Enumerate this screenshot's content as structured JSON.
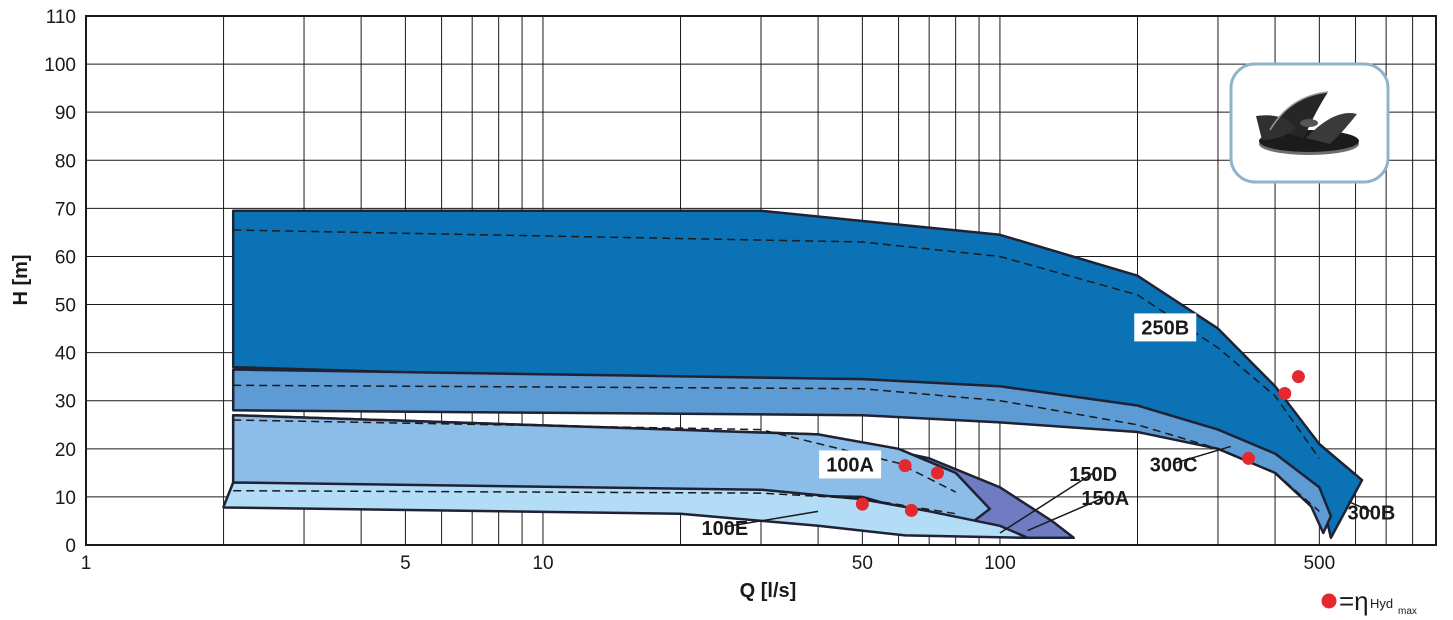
{
  "chart_data": {
    "type": "area",
    "xlabel": "Q [l/s]",
    "ylabel": "H [m]",
    "x_scale": "log",
    "xlim": [
      1,
      900
    ],
    "ylim": [
      0,
      110
    ],
    "x_ticks": [
      {
        "value": 1,
        "label": "1"
      },
      {
        "value": 5,
        "label": "5"
      },
      {
        "value": 10,
        "label": "10"
      },
      {
        "value": 50,
        "label": "50"
      },
      {
        "value": 100,
        "label": "100"
      },
      {
        "value": 500,
        "label": "500"
      }
    ],
    "y_ticks": [
      0,
      10,
      20,
      30,
      40,
      50,
      60,
      70,
      80,
      90,
      100,
      110
    ],
    "grid": true,
    "colors": {
      "300B": "#0a72b5",
      "300C": "#5d9bd5",
      "150D": "#6f7cc2",
      "150A": "#8cbde8",
      "100E": "#b3dcf7",
      "outline": "#1e2232",
      "bep_marker": "#e3282e"
    },
    "series": [
      {
        "name": "300B",
        "label": "250B",
        "polygon": [
          [
            2.1,
            69.5
          ],
          [
            30,
            69.5
          ],
          [
            100,
            64.5
          ],
          [
            200,
            56
          ],
          [
            300,
            45
          ],
          [
            400,
            33
          ],
          [
            500,
            21
          ],
          [
            620,
            13.5
          ],
          [
            530,
            1.5
          ],
          [
            500,
            12
          ],
          [
            300,
            21
          ],
          [
            150,
            26
          ],
          [
            50,
            33
          ],
          [
            2.1,
            37
          ]
        ],
        "dashed_curve": [
          [
            2.1,
            65.5
          ],
          [
            50,
            63
          ],
          [
            100,
            60
          ],
          [
            200,
            52
          ],
          [
            300,
            41
          ],
          [
            400,
            31
          ],
          [
            500,
            18
          ]
        ]
      },
      {
        "name": "300C",
        "polygon": [
          [
            2.1,
            36.5
          ],
          [
            50,
            34.5
          ],
          [
            100,
            33
          ],
          [
            200,
            29
          ],
          [
            300,
            24
          ],
          [
            400,
            19
          ],
          [
            500,
            12
          ],
          [
            530,
            6
          ],
          [
            510,
            2.5
          ],
          [
            480,
            8
          ],
          [
            400,
            15
          ],
          [
            300,
            20
          ],
          [
            200,
            23.5
          ],
          [
            100,
            25.5
          ],
          [
            50,
            27
          ],
          [
            2.1,
            28
          ]
        ],
        "dashed_curve": [
          [
            2.1,
            33.2
          ],
          [
            50,
            32.5
          ],
          [
            100,
            30
          ],
          [
            200,
            25
          ],
          [
            300,
            20
          ],
          [
            400,
            15
          ],
          [
            500,
            7
          ]
        ]
      },
      {
        "name": "150D",
        "polygon": [
          [
            2.1,
            27
          ],
          [
            40,
            23
          ],
          [
            70,
            18
          ],
          [
            100,
            12
          ],
          [
            130,
            5
          ],
          [
            145,
            1.5
          ],
          [
            110,
            1.5
          ],
          [
            80,
            6
          ],
          [
            50,
            10
          ],
          [
            2.1,
            12.5
          ]
        ]
      },
      {
        "name": "150A",
        "polygon": [
          [
            2.1,
            27
          ],
          [
            40,
            23
          ],
          [
            60,
            20
          ],
          [
            80,
            15
          ],
          [
            95,
            7.5
          ],
          [
            85,
            4
          ],
          [
            70,
            6
          ],
          [
            50,
            10
          ],
          [
            2.1,
            12.5
          ]
        ],
        "dashed_curve": [
          [
            2.1,
            26
          ],
          [
            30,
            24
          ],
          [
            60,
            17
          ],
          [
            80,
            11
          ]
        ]
      },
      {
        "name": "100E",
        "polygon": [
          [
            2.1,
            13
          ],
          [
            30,
            11.5
          ],
          [
            50,
            9.5
          ],
          [
            70,
            7
          ],
          [
            100,
            4
          ],
          [
            115,
            1.5
          ],
          [
            62,
            2
          ],
          [
            40,
            4
          ],
          [
            20,
            6.5
          ],
          [
            2,
            7.8
          ],
          [
            2,
            8
          ],
          [
            2.1,
            13
          ]
        ],
        "dashed_curve": [
          [
            2.1,
            11.3
          ],
          [
            30,
            10.8
          ],
          [
            50,
            9.6
          ],
          [
            80,
            6.5
          ]
        ]
      }
    ],
    "bep_points": [
      {
        "series": "300B",
        "x": 450,
        "y": 35
      },
      {
        "series": "300B",
        "x": 420,
        "y": 31.5
      },
      {
        "series": "300C",
        "x": 350,
        "y": 18
      },
      {
        "series": "150D",
        "x": 73,
        "y": 15
      },
      {
        "series": "150A",
        "x": 62,
        "y": 16.5
      },
      {
        "series": "100E",
        "x": 50,
        "y": 8.5
      },
      {
        "series": "100E",
        "x": 64,
        "y": 7.2
      }
    ],
    "labels": [
      {
        "text": "250B",
        "series": "300B",
        "boxed": true,
        "at": [
          230,
          44
        ]
      },
      {
        "text": "100A",
        "series": "150A",
        "boxed": true,
        "at": [
          47,
          15.5
        ]
      },
      {
        "text": "150D",
        "series": "150D",
        "boxed": false,
        "at": [
          160,
          13.5
        ],
        "pointer_to": [
          100,
          2.5
        ]
      },
      {
        "text": "150A",
        "series": "150A",
        "boxed": false,
        "at": [
          170,
          8.5
        ],
        "pointer_to": [
          115,
          3
        ]
      },
      {
        "text": "100E",
        "series": "100E",
        "boxed": false,
        "at": [
          25,
          2.3
        ],
        "pointer_to": [
          40,
          7
        ]
      },
      {
        "text": "300C",
        "series": "300C",
        "boxed": false,
        "at": [
          240,
          15.5
        ],
        "pointer_to": [
          320,
          20.5
        ]
      },
      {
        "text": "300B",
        "series": "300B",
        "boxed": false,
        "at": [
          650,
          5.5
        ],
        "pointer_to": [
          580,
          9
        ]
      }
    ],
    "legend": {
      "marker": "bep-dot",
      "text": "=η",
      "sub_text": "Hyd",
      "sub_sub_text": "max",
      "position": "bottom-right"
    },
    "inset_image": {
      "icon": "impeller-icon",
      "position": "top-right"
    }
  }
}
